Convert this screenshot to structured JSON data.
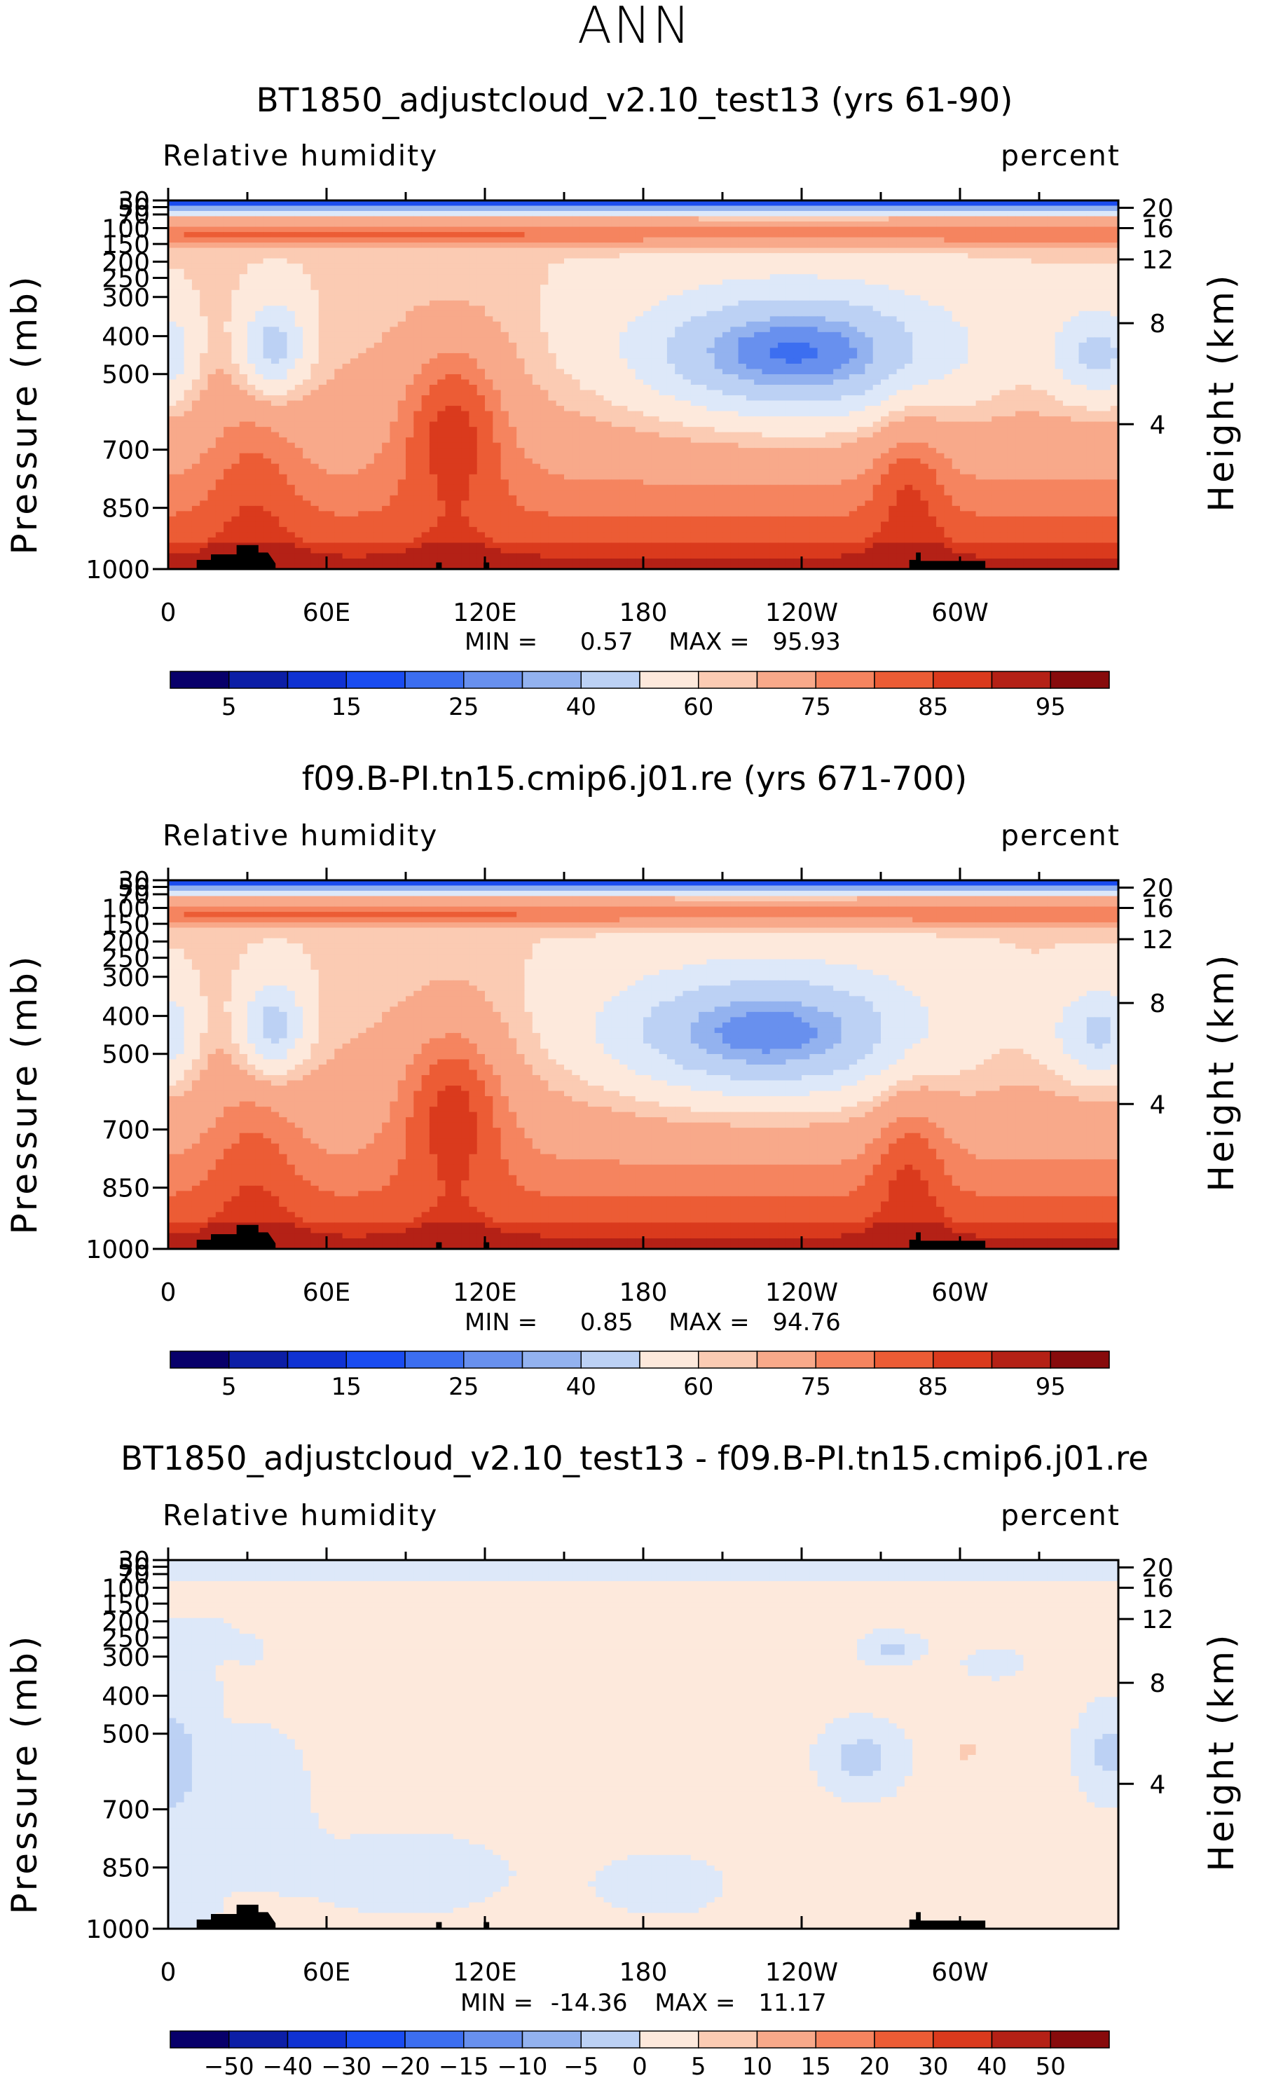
{
  "page_title": "ANN",
  "chart_data": [
    {
      "type": "heatmap",
      "title": "BT1850_adjustcloud_v2.10_test13 (yrs 61-90)",
      "left_label": "Relative humidity",
      "right_label": "percent",
      "ylabel": "Pressure (mb)",
      "y2label": "Height (km)",
      "x_ticks": [
        "0",
        "60E",
        "120E",
        "180",
        "120W",
        "60W"
      ],
      "y_ticks": [
        "30",
        "50",
        "70",
        "100",
        "150",
        "200",
        "250",
        "300",
        "400",
        "500",
        "700",
        "850",
        "1000"
      ],
      "y2_ticks": [
        "20",
        "16",
        "12",
        "8",
        "4"
      ],
      "stats": {
        "min_label": "MIN =",
        "min_value": "0.57",
        "max_label": "MAX =",
        "max_value": "95.93"
      },
      "colorbar_labels": [
        "5",
        "15",
        "25",
        "40",
        "60",
        "75",
        "85",
        "95"
      ],
      "levels": [
        5,
        10,
        15,
        20,
        25,
        30,
        40,
        50,
        60,
        65,
        75,
        80,
        85,
        90,
        95
      ],
      "field": "rh_mean"
    },
    {
      "type": "heatmap",
      "title": "f09.B-PI.tn15.cmip6.j01.re (yrs 671-700)",
      "left_label": "Relative humidity",
      "right_label": "percent",
      "ylabel": "Pressure (mb)",
      "y2label": "Height (km)",
      "x_ticks": [
        "0",
        "60E",
        "120E",
        "180",
        "120W",
        "60W"
      ],
      "y_ticks": [
        "30",
        "50",
        "70",
        "100",
        "150",
        "200",
        "250",
        "300",
        "400",
        "500",
        "700",
        "850",
        "1000"
      ],
      "y2_ticks": [
        "20",
        "16",
        "12",
        "8",
        "4"
      ],
      "stats": {
        "min_label": "MIN =",
        "min_value": "0.85",
        "max_label": "MAX =",
        "max_value": "94.76"
      },
      "colorbar_labels": [
        "5",
        "15",
        "25",
        "40",
        "60",
        "75",
        "85",
        "95"
      ],
      "levels": [
        5,
        10,
        15,
        20,
        25,
        30,
        40,
        50,
        60,
        65,
        75,
        80,
        85,
        90,
        95
      ],
      "field": "rh_ctrl"
    },
    {
      "type": "heatmap",
      "title": "BT1850_adjustcloud_v2.10_test13 - f09.B-PI.tn15.cmip6.j01.re",
      "left_label": "Relative humidity",
      "right_label": "percent",
      "ylabel": "Pressure (mb)",
      "y2label": "Height (km)",
      "x_ticks": [
        "0",
        "60E",
        "120E",
        "180",
        "120W",
        "60W"
      ],
      "y_ticks": [
        "30",
        "50",
        "70",
        "100",
        "150",
        "200",
        "250",
        "300",
        "400",
        "500",
        "700",
        "850",
        "1000"
      ],
      "y2_ticks": [
        "20",
        "16",
        "12",
        "8",
        "4"
      ],
      "stats": {
        "min_label": "MIN =",
        "min_value": "-14.36",
        "max_label": "MAX =",
        "max_value": "11.17"
      },
      "colorbar_labels": [
        "−50",
        "−40",
        "−30",
        "−20",
        "−15",
        "−10",
        "−5",
        "0",
        "5",
        "10",
        "15",
        "20",
        "30",
        "40",
        "50"
      ],
      "levels": [
        -50,
        -40,
        -30,
        -20,
        -15,
        -10,
        -5,
        0,
        5,
        10,
        15,
        20,
        30,
        40,
        50
      ],
      "field": "rh_diff"
    }
  ],
  "colors": {
    "scale": [
      "#08006a",
      "#0c1ea6",
      "#1032d2",
      "#1a4cf0",
      "#3c6ef0",
      "#6890ee",
      "#93b2ef",
      "#bcd1f4",
      "#dde8f9",
      "#fde9dc",
      "#fbcbb3",
      "#f8a98a",
      "#f5845f",
      "#ec5c35",
      "#da3a1d",
      "#b42116",
      "#870b0c"
    ],
    "topo": "#000000"
  }
}
